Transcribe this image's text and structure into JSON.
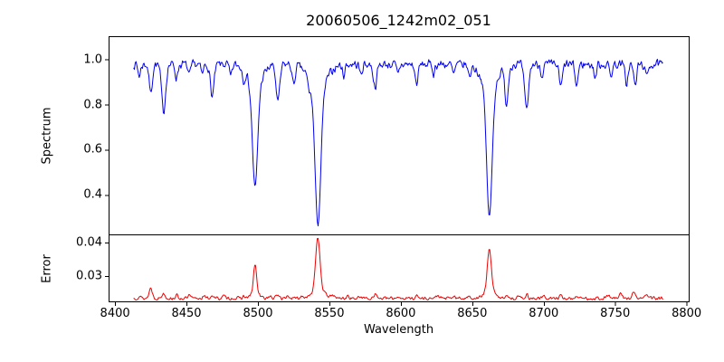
{
  "chart_data": {
    "type": "line",
    "title": "20060506_1242m02_051",
    "xlabel": "Wavelength",
    "xlim": [
      8395.5,
      8801.5
    ],
    "x_tick_values": [
      8400,
      8450,
      8500,
      8550,
      8600,
      8650,
      8700,
      8750,
      8800
    ],
    "x_tick_labels": [
      "8400",
      "8450",
      "8500",
      "8550",
      "8600",
      "8650",
      "8700",
      "8750",
      "8800"
    ],
    "grid": false,
    "legend": "none",
    "panel_height_ratio": [
      3,
      1
    ],
    "panels": [
      {
        "name": "spectrum",
        "ylabel": "Spectrum",
        "color": "#0000ee",
        "ylim": [
          0.225,
          1.103
        ],
        "ytick_values": [
          1.0,
          0.8,
          0.6,
          0.4
        ],
        "ytick_labels": [
          "1.0",
          "0.8",
          "0.6",
          "0.4"
        ],
        "x_range": [
          8413,
          8783.5
        ],
        "continuum": 0.978,
        "noise_amplitude": 0.024,
        "seed": 7,
        "description": "Normalized stellar spectrum; strong Ca II triplet absorption lines at 8498, 8542, 8662 plus weaker metal lines",
        "features": [
          {
            "center": 8417,
            "depth": 0.05,
            "sigma": 0.9
          },
          {
            "center": 8425,
            "depth": 0.125,
            "sigma": 1.1
          },
          {
            "center": 8434,
            "depth": 0.21,
            "sigma": 1.4
          },
          {
            "center": 8443,
            "depth": 0.06,
            "sigma": 0.9
          },
          {
            "center": 8452,
            "depth": 0.05,
            "sigma": 0.9
          },
          {
            "center": 8461,
            "depth": 0.045,
            "sigma": 0.9
          },
          {
            "center": 8468,
            "depth": 0.14,
            "sigma": 1.3
          },
          {
            "center": 8481,
            "depth": 0.055,
            "sigma": 0.9
          },
          {
            "center": 8490,
            "depth": 0.045,
            "sigma": 0.8
          },
          {
            "center": 8498,
            "depth": 0.45,
            "sigma": 1.8
          },
          {
            "center": 8498,
            "depth": 0.095,
            "sigma": 5.0
          },
          {
            "center": 8514,
            "depth": 0.165,
            "sigma": 1.3
          },
          {
            "center": 8525,
            "depth": 0.09,
            "sigma": 1.0
          },
          {
            "center": 8536,
            "depth": 0.05,
            "sigma": 1.0
          },
          {
            "center": 8542,
            "depth": 0.6,
            "sigma": 2.0
          },
          {
            "center": 8542,
            "depth": 0.11,
            "sigma": 6.0
          },
          {
            "center": 8560,
            "depth": 0.045,
            "sigma": 0.9
          },
          {
            "center": 8572,
            "depth": 0.045,
            "sigma": 0.9
          },
          {
            "center": 8582,
            "depth": 0.1,
            "sigma": 1.2
          },
          {
            "center": 8598,
            "depth": 0.045,
            "sigma": 0.9
          },
          {
            "center": 8611,
            "depth": 0.085,
            "sigma": 1.1
          },
          {
            "center": 8623,
            "depth": 0.04,
            "sigma": 0.8
          },
          {
            "center": 8637,
            "depth": 0.045,
            "sigma": 0.9
          },
          {
            "center": 8648,
            "depth": 0.05,
            "sigma": 0.9
          },
          {
            "center": 8662,
            "depth": 0.57,
            "sigma": 1.9
          },
          {
            "center": 8662,
            "depth": 0.105,
            "sigma": 5.5
          },
          {
            "center": 8674,
            "depth": 0.165,
            "sigma": 1.2
          },
          {
            "center": 8688,
            "depth": 0.2,
            "sigma": 1.4
          },
          {
            "center": 8699,
            "depth": 0.05,
            "sigma": 0.9
          },
          {
            "center": 8712,
            "depth": 0.1,
            "sigma": 1.1
          },
          {
            "center": 8723,
            "depth": 0.095,
            "sigma": 1.0
          },
          {
            "center": 8736,
            "depth": 0.06,
            "sigma": 0.9
          },
          {
            "center": 8747,
            "depth": 0.05,
            "sigma": 0.9
          },
          {
            "center": 8758,
            "depth": 0.085,
            "sigma": 1.0
          },
          {
            "center": 8764,
            "depth": 0.095,
            "sigma": 1.0
          },
          {
            "center": 8772,
            "depth": 0.06,
            "sigma": 0.9
          }
        ]
      },
      {
        "name": "error",
        "ylabel": "Error",
        "color": "#ee0000",
        "ylim": [
          0.0224,
          0.0424
        ],
        "ytick_values": [
          0.04,
          0.03
        ],
        "ytick_labels": [
          "0.04",
          "0.03"
        ],
        "x_range": [
          8413,
          8783.5
        ],
        "baseline": 0.0233,
        "noise_amplitude": 0.0006,
        "seed": 13,
        "description": "Error spectrum; sharp spikes coincide with the Ca II absorption line cores",
        "peaks": [
          {
            "center": 8417,
            "height": 0.0007,
            "sigma": 0.9
          },
          {
            "center": 8425,
            "height": 0.0031,
            "sigma": 1.1
          },
          {
            "center": 8434,
            "height": 0.0015,
            "sigma": 1.1
          },
          {
            "center": 8443,
            "height": 0.0009,
            "sigma": 0.9
          },
          {
            "center": 8452,
            "height": 0.0008,
            "sigma": 0.9
          },
          {
            "center": 8462,
            "height": 0.0007,
            "sigma": 0.9
          },
          {
            "center": 8468,
            "height": 0.0009,
            "sigma": 1.0
          },
          {
            "center": 8476,
            "height": 0.0007,
            "sigma": 0.9
          },
          {
            "center": 8490,
            "height": 0.0006,
            "sigma": 0.8
          },
          {
            "center": 8498,
            "height": 0.0088,
            "sigma": 1.1
          },
          {
            "center": 8498,
            "height": 0.0013,
            "sigma": 3.0
          },
          {
            "center": 8508,
            "height": 0.0006,
            "sigma": 0.9
          },
          {
            "center": 8514,
            "height": 0.0011,
            "sigma": 1.1
          },
          {
            "center": 8521,
            "height": 0.0008,
            "sigma": 0.9
          },
          {
            "center": 8531,
            "height": 0.0007,
            "sigma": 0.9
          },
          {
            "center": 8542,
            "height": 0.0155,
            "sigma": 1.5
          },
          {
            "center": 8542,
            "height": 0.0026,
            "sigma": 4.5
          },
          {
            "center": 8553,
            "height": 0.0008,
            "sigma": 1.0
          },
          {
            "center": 8563,
            "height": 0.0007,
            "sigma": 0.9
          },
          {
            "center": 8572,
            "height": 0.0007,
            "sigma": 0.9
          },
          {
            "center": 8582,
            "height": 0.0013,
            "sigma": 1.1
          },
          {
            "center": 8598,
            "height": 0.0006,
            "sigma": 0.9
          },
          {
            "center": 8611,
            "height": 0.0008,
            "sigma": 1.0
          },
          {
            "center": 8626,
            "height": 0.0009,
            "sigma": 1.0
          },
          {
            "center": 8637,
            "height": 0.0006,
            "sigma": 0.9
          },
          {
            "center": 8648,
            "height": 0.0007,
            "sigma": 0.9
          },
          {
            "center": 8662,
            "height": 0.0125,
            "sigma": 1.4
          },
          {
            "center": 8662,
            "height": 0.0022,
            "sigma": 3.5
          },
          {
            "center": 8674,
            "height": 0.0011,
            "sigma": 1.0
          },
          {
            "center": 8682,
            "height": 0.0008,
            "sigma": 0.9
          },
          {
            "center": 8688,
            "height": 0.0011,
            "sigma": 1.0
          },
          {
            "center": 8700,
            "height": 0.0006,
            "sigma": 0.9
          },
          {
            "center": 8712,
            "height": 0.0007,
            "sigma": 0.9
          },
          {
            "center": 8723,
            "height": 0.0007,
            "sigma": 0.9
          },
          {
            "center": 8745,
            "height": 0.001,
            "sigma": 1.0
          },
          {
            "center": 8754,
            "height": 0.0013,
            "sigma": 1.0
          },
          {
            "center": 8763,
            "height": 0.0017,
            "sigma": 1.1
          },
          {
            "center": 8772,
            "height": 0.0013,
            "sigma": 1.0
          }
        ]
      }
    ]
  }
}
